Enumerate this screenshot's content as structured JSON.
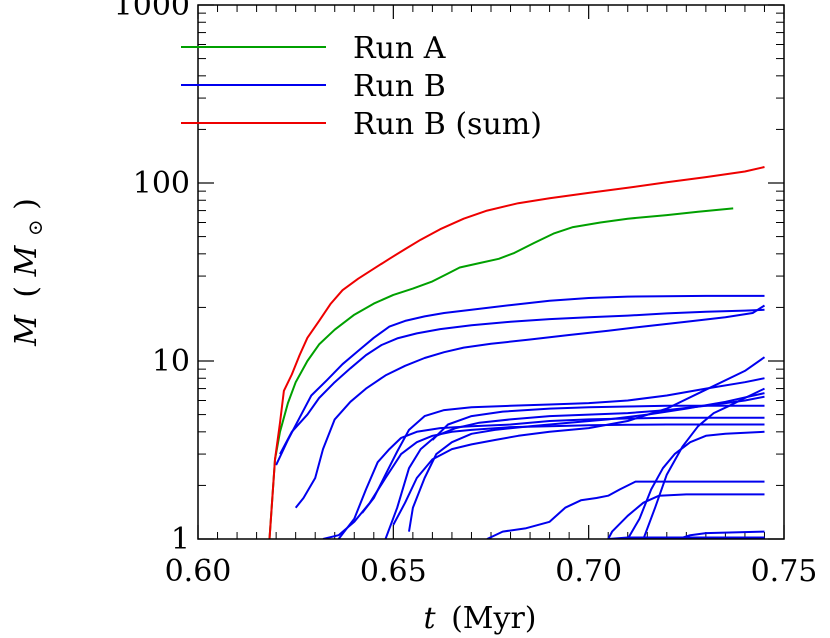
{
  "chart_data": {
    "type": "line",
    "xlabel": {
      "var": "t",
      "unit": "(Myr)"
    },
    "ylabel": {
      "var": "M",
      "unit_open": "(",
      "unit_var": "M",
      "unit_sub": "⊙",
      "unit_close": ")"
    },
    "xlim": [
      0.6,
      0.75
    ],
    "ylim": [
      1,
      1000
    ],
    "yscale": "log",
    "xticks": [
      {
        "value": 0.6,
        "label": "0.60"
      },
      {
        "value": 0.65,
        "label": "0.65"
      },
      {
        "value": 0.7,
        "label": "0.70"
      },
      {
        "value": 0.75,
        "label": "0.75"
      }
    ],
    "yticks": [
      {
        "value": 1,
        "label": "1"
      },
      {
        "value": 10,
        "label": "10"
      },
      {
        "value": 100,
        "label": "100"
      },
      {
        "value": 1000,
        "label": "1000"
      }
    ],
    "grid": false,
    "legend": {
      "placement": "top-left",
      "entries": [
        {
          "label": "Run A",
          "color": "#00a000"
        },
        {
          "label": "Run B",
          "color": "#0000ee"
        },
        {
          "label": "Run B (sum)",
          "color": "#ee0000"
        }
      ]
    },
    "series": [
      {
        "group": "Run B",
        "color": "#0000ee",
        "points": [
          [
            0.62,
            2.6
          ],
          [
            0.623,
            3.6
          ],
          [
            0.626,
            4.8
          ],
          [
            0.629,
            6.4
          ],
          [
            0.633,
            7.8
          ],
          [
            0.637,
            9.6
          ],
          [
            0.641,
            11.4
          ],
          [
            0.645,
            13.5
          ],
          [
            0.649,
            15.6
          ],
          [
            0.653,
            16.8
          ],
          [
            0.658,
            17.8
          ],
          [
            0.663,
            18.6
          ],
          [
            0.67,
            19.4
          ],
          [
            0.68,
            20.6
          ],
          [
            0.69,
            21.8
          ],
          [
            0.7,
            22.6
          ],
          [
            0.71,
            23.0
          ],
          [
            0.73,
            23.2
          ],
          [
            0.745,
            23.2
          ]
        ]
      },
      {
        "group": "Run B",
        "color": "#0000ee",
        "points": [
          [
            0.621,
            3.0
          ],
          [
            0.624,
            4.0
          ],
          [
            0.628,
            5.0
          ],
          [
            0.631,
            6.2
          ],
          [
            0.635,
            7.6
          ],
          [
            0.639,
            9.1
          ],
          [
            0.643,
            10.8
          ],
          [
            0.647,
            12.3
          ],
          [
            0.651,
            13.4
          ],
          [
            0.656,
            14.3
          ],
          [
            0.662,
            15.1
          ],
          [
            0.67,
            15.9
          ],
          [
            0.68,
            16.6
          ],
          [
            0.69,
            17.2
          ],
          [
            0.7,
            17.6
          ],
          [
            0.71,
            18.0
          ],
          [
            0.72,
            18.5
          ],
          [
            0.73,
            18.9
          ],
          [
            0.74,
            19.2
          ],
          [
            0.745,
            19.4
          ]
        ]
      },
      {
        "group": "Run B",
        "color": "#0000ee",
        "points": [
          [
            0.625,
            1.5
          ],
          [
            0.627,
            1.7
          ],
          [
            0.63,
            2.2
          ],
          [
            0.632,
            3.2
          ],
          [
            0.635,
            4.7
          ],
          [
            0.639,
            5.9
          ],
          [
            0.643,
            7.0
          ],
          [
            0.648,
            8.3
          ],
          [
            0.653,
            9.4
          ],
          [
            0.658,
            10.4
          ],
          [
            0.663,
            11.2
          ],
          [
            0.668,
            11.9
          ],
          [
            0.675,
            12.5
          ],
          [
            0.685,
            13.2
          ],
          [
            0.695,
            14.0
          ],
          [
            0.705,
            14.8
          ],
          [
            0.715,
            15.7
          ],
          [
            0.725,
            16.6
          ],
          [
            0.735,
            17.6
          ],
          [
            0.742,
            18.6
          ],
          [
            0.745,
            20.5
          ]
        ]
      },
      {
        "group": "Run B",
        "color": "#0000ee",
        "points": [
          [
            0.636,
            1.0
          ],
          [
            0.64,
            1.3
          ],
          [
            0.643,
            1.9
          ],
          [
            0.646,
            2.7
          ],
          [
            0.649,
            3.2
          ],
          [
            0.652,
            3.7
          ],
          [
            0.656,
            4.0
          ],
          [
            0.662,
            4.2
          ],
          [
            0.67,
            4.3
          ],
          [
            0.68,
            4.4
          ],
          [
            0.69,
            4.6
          ],
          [
            0.7,
            4.7
          ],
          [
            0.71,
            4.75
          ],
          [
            0.72,
            4.8
          ],
          [
            0.73,
            4.8
          ],
          [
            0.745,
            4.8
          ]
        ]
      },
      {
        "group": "Run B",
        "color": "#0000ee",
        "points": [
          [
            0.632,
            1.0
          ],
          [
            0.636,
            1.05
          ],
          [
            0.64,
            1.25
          ],
          [
            0.644,
            1.6
          ],
          [
            0.648,
            2.2
          ],
          [
            0.652,
            3.0
          ],
          [
            0.656,
            3.5
          ],
          [
            0.66,
            3.8
          ],
          [
            0.665,
            4.0
          ],
          [
            0.67,
            4.1
          ],
          [
            0.68,
            4.25
          ],
          [
            0.69,
            4.3
          ],
          [
            0.7,
            4.35
          ],
          [
            0.71,
            4.38
          ],
          [
            0.72,
            4.4
          ],
          [
            0.745,
            4.4
          ]
        ]
      },
      {
        "group": "Run B",
        "color": "#0000ee",
        "points": [
          [
            0.642,
            1.4
          ],
          [
            0.645,
            1.7
          ],
          [
            0.648,
            2.3
          ],
          [
            0.651,
            3.1
          ],
          [
            0.654,
            4.1
          ],
          [
            0.658,
            4.9
          ],
          [
            0.663,
            5.3
          ],
          [
            0.67,
            5.5
          ],
          [
            0.68,
            5.6
          ],
          [
            0.69,
            5.7
          ],
          [
            0.7,
            5.8
          ],
          [
            0.71,
            6.0
          ],
          [
            0.72,
            6.4
          ],
          [
            0.73,
            7.0
          ],
          [
            0.74,
            7.6
          ],
          [
            0.745,
            8.0
          ]
        ]
      },
      {
        "group": "Run B",
        "color": "#0000ee",
        "points": [
          [
            0.648,
            1.0
          ],
          [
            0.651,
            1.5
          ],
          [
            0.654,
            2.5
          ],
          [
            0.657,
            3.2
          ],
          [
            0.661,
            3.8
          ],
          [
            0.666,
            4.2
          ],
          [
            0.672,
            4.5
          ],
          [
            0.68,
            4.7
          ],
          [
            0.69,
            4.9
          ],
          [
            0.7,
            5.0
          ],
          [
            0.71,
            5.1
          ],
          [
            0.72,
            5.3
          ],
          [
            0.73,
            5.6
          ],
          [
            0.74,
            6.0
          ],
          [
            0.745,
            6.3
          ]
        ]
      },
      {
        "group": "Run B",
        "color": "#0000ee",
        "points": [
          [
            0.654,
            1.1
          ],
          [
            0.655,
            1.5
          ],
          [
            0.658,
            2.2
          ],
          [
            0.661,
            3.0
          ],
          [
            0.665,
            3.5
          ],
          [
            0.67,
            3.9
          ],
          [
            0.676,
            4.1
          ],
          [
            0.685,
            4.3
          ],
          [
            0.695,
            4.5
          ],
          [
            0.705,
            4.7
          ],
          [
            0.715,
            5.0
          ],
          [
            0.725,
            5.4
          ],
          [
            0.735,
            5.9
          ],
          [
            0.745,
            6.6
          ]
        ]
      },
      {
        "group": "Run B",
        "color": "#0000ee",
        "points": [
          [
            0.65,
            1.2
          ],
          [
            0.653,
            1.6
          ],
          [
            0.656,
            2.2
          ],
          [
            0.66,
            2.8
          ],
          [
            0.665,
            3.2
          ],
          [
            0.67,
            3.4
          ],
          [
            0.676,
            3.6
          ],
          [
            0.682,
            3.8
          ],
          [
            0.69,
            4.0
          ],
          [
            0.7,
            4.2
          ],
          [
            0.71,
            4.6
          ],
          [
            0.72,
            5.4
          ],
          [
            0.73,
            6.9
          ],
          [
            0.74,
            8.8
          ],
          [
            0.745,
            10.5
          ]
        ]
      },
      {
        "group": "Run B",
        "color": "#0000ee",
        "points": [
          [
            0.66,
            3.6
          ],
          [
            0.664,
            4.4
          ],
          [
            0.67,
            4.9
          ],
          [
            0.678,
            5.2
          ],
          [
            0.69,
            5.4
          ],
          [
            0.7,
            5.5
          ],
          [
            0.71,
            5.55
          ],
          [
            0.72,
            5.6
          ],
          [
            0.73,
            5.6
          ],
          [
            0.745,
            5.6
          ]
        ]
      },
      {
        "group": "Run B",
        "color": "#0000ee",
        "points": [
          [
            0.674,
            1.0
          ],
          [
            0.678,
            1.1
          ],
          [
            0.684,
            1.15
          ],
          [
            0.69,
            1.25
          ],
          [
            0.694,
            1.5
          ],
          [
            0.698,
            1.65
          ],
          [
            0.702,
            1.7
          ],
          [
            0.705,
            1.75
          ],
          [
            0.708,
            1.9
          ],
          [
            0.712,
            2.1
          ],
          [
            0.72,
            2.1
          ],
          [
            0.745,
            2.1
          ]
        ]
      },
      {
        "group": "Run B",
        "color": "#0000ee",
        "points": [
          [
            0.705,
            1.0
          ],
          [
            0.706,
            1.1
          ],
          [
            0.71,
            1.35
          ],
          [
            0.714,
            1.6
          ],
          [
            0.718,
            1.75
          ],
          [
            0.725,
            1.78
          ],
          [
            0.745,
            1.78
          ]
        ]
      },
      {
        "group": "Run B",
        "color": "#0000ee",
        "points": [
          [
            0.71,
            1.0
          ],
          [
            0.713,
            1.3
          ],
          [
            0.716,
            1.9
          ],
          [
            0.719,
            2.5
          ],
          [
            0.722,
            3.0
          ],
          [
            0.726,
            3.5
          ],
          [
            0.73,
            3.8
          ],
          [
            0.735,
            3.9
          ],
          [
            0.745,
            4.0
          ]
        ]
      },
      {
        "group": "Run B",
        "color": "#0000ee",
        "points": [
          [
            0.714,
            1.0
          ],
          [
            0.717,
            1.5
          ],
          [
            0.72,
            2.3
          ],
          [
            0.724,
            3.3
          ],
          [
            0.728,
            4.3
          ],
          [
            0.732,
            5.1
          ],
          [
            0.736,
            5.6
          ],
          [
            0.74,
            6.2
          ],
          [
            0.745,
            7.0
          ]
        ]
      },
      {
        "group": "Run B",
        "color": "#0000ee",
        "points": [
          [
            0.705,
            1.0
          ],
          [
            0.71,
            1.02
          ],
          [
            0.72,
            1.02
          ],
          [
            0.745,
            1.02
          ]
        ]
      },
      {
        "group": "Run B",
        "color": "#0000ee",
        "points": [
          [
            0.723,
            1.0
          ],
          [
            0.726,
            1.05
          ],
          [
            0.73,
            1.08
          ],
          [
            0.745,
            1.1
          ]
        ]
      },
      {
        "group": "Run A",
        "color": "#00a000",
        "points": [
          [
            0.6183,
            1.0
          ],
          [
            0.6197,
            2.8
          ],
          [
            0.621,
            4.0
          ],
          [
            0.623,
            5.8
          ],
          [
            0.625,
            7.6
          ],
          [
            0.628,
            10.0
          ],
          [
            0.631,
            12.4
          ],
          [
            0.635,
            15.0
          ],
          [
            0.64,
            18.2
          ],
          [
            0.645,
            21.0
          ],
          [
            0.65,
            23.5
          ],
          [
            0.655,
            25.5
          ],
          [
            0.66,
            28.0
          ],
          [
            0.664,
            31.0
          ],
          [
            0.667,
            33.5
          ],
          [
            0.672,
            35.5
          ],
          [
            0.677,
            37.5
          ],
          [
            0.681,
            40.5
          ],
          [
            0.686,
            46.0
          ],
          [
            0.691,
            52.0
          ],
          [
            0.696,
            56.5
          ],
          [
            0.703,
            60.0
          ],
          [
            0.71,
            63.0
          ],
          [
            0.72,
            66.0
          ],
          [
            0.728,
            69.0
          ],
          [
            0.737,
            72.0
          ]
        ]
      },
      {
        "group": "Run B (sum)",
        "color": "#ee0000",
        "points": [
          [
            0.6183,
            1.0
          ],
          [
            0.6197,
            2.8
          ],
          [
            0.621,
            4.5
          ],
          [
            0.622,
            6.8
          ],
          [
            0.624,
            8.4
          ],
          [
            0.626,
            10.8
          ],
          [
            0.628,
            13.5
          ],
          [
            0.631,
            16.8
          ],
          [
            0.634,
            21.0
          ],
          [
            0.637,
            25.0
          ],
          [
            0.641,
            29.0
          ],
          [
            0.645,
            33.0
          ],
          [
            0.649,
            37.5
          ],
          [
            0.653,
            42.5
          ],
          [
            0.657,
            48.0
          ],
          [
            0.662,
            55.0
          ],
          [
            0.668,
            63.0
          ],
          [
            0.674,
            70.0
          ],
          [
            0.682,
            77.0
          ],
          [
            0.69,
            82.0
          ],
          [
            0.7,
            88.0
          ],
          [
            0.71,
            94.0
          ],
          [
            0.72,
            101.0
          ],
          [
            0.73,
            108.0
          ],
          [
            0.74,
            116.0
          ],
          [
            0.745,
            123.0
          ]
        ]
      }
    ]
  }
}
